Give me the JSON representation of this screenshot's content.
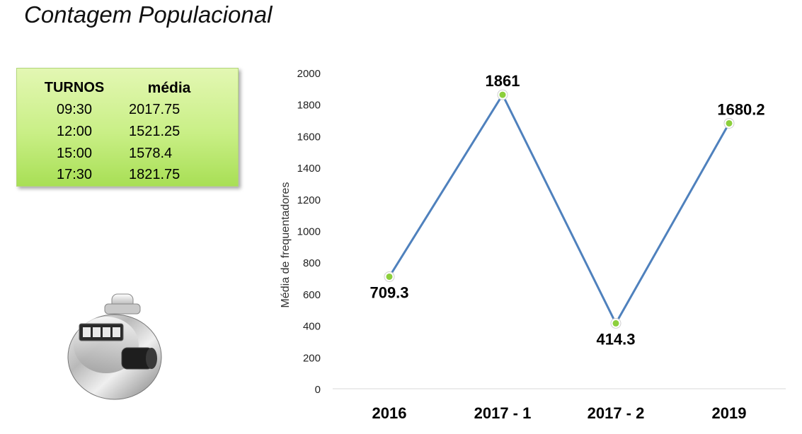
{
  "title": "Contagem Populacional",
  "shifts_table": {
    "headers": [
      "TURNOS",
      "média"
    ],
    "rows": [
      [
        "09:30",
        "2017.75"
      ],
      [
        "12:00",
        "1521.25"
      ],
      [
        "15:00",
        "1578.4"
      ],
      [
        "17:30",
        "1821.75"
      ]
    ]
  },
  "colors": {
    "line": "#4f81bd",
    "marker": "#8ccf3c",
    "table_bg": "#c9ef86"
  },
  "chart_data": {
    "type": "line",
    "categories": [
      "2016",
      "2017 - 1",
      "2017 - 2",
      "2019"
    ],
    "series": [
      {
        "values": [
          709.3,
          1861,
          414.3,
          1680.2
        ]
      }
    ],
    "data_labels": [
      "709.3",
      "1861",
      "414.3",
      "1680.2"
    ],
    "ylabel": "Média de frequentadores",
    "xlabel": "",
    "ylim": [
      0,
      2000
    ],
    "yticks": [
      0,
      200,
      400,
      600,
      800,
      1000,
      1200,
      1400,
      1600,
      1800,
      2000
    ],
    "grid": false,
    "legend": "none"
  }
}
